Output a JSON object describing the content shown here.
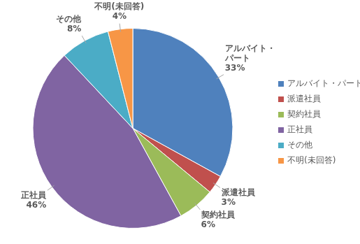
{
  "chart_data": {
    "type": "pie",
    "categories": [
      "アルバイト・パート",
      "派遣社員",
      "契約社員",
      "正社員",
      "その他",
      "不明(未回答)"
    ],
    "values": [
      33,
      3,
      6,
      46,
      8,
      4
    ],
    "value_labels": [
      "33%",
      "3%",
      "6%",
      "46%",
      "8%",
      "4%"
    ],
    "colors": [
      "#4f81bd",
      "#c0504d",
      "#9bbb59",
      "#8064a2",
      "#4bacc6",
      "#f79646"
    ],
    "legend": "right",
    "data_labels": true
  }
}
